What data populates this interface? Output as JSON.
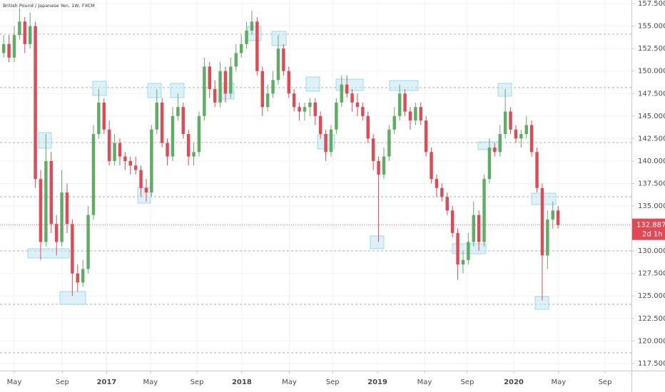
{
  "chart_data": {
    "type": "candlestick",
    "title": "British Pound / Japanese Yen, 1W, FXCM",
    "up_color": "#5fad65",
    "down_color": "#e04a55",
    "grid": true,
    "open": [
      152,
      153,
      151.5,
      154,
      155.5,
      153,
      155,
      138,
      131,
      140,
      133,
      131,
      136.5,
      133,
      127.5,
      126.5,
      128,
      134,
      143,
      146.5,
      143.5,
      140,
      142,
      140.5,
      140,
      139.5,
      139,
      137,
      136.5,
      143.5,
      146.5,
      142,
      140.5,
      145,
      146,
      143,
      140.5,
      141,
      145,
      150.5,
      148,
      146.5,
      150,
      147.5,
      150.5,
      152,
      153,
      154.5,
      155.5,
      150,
      146,
      147.5,
      149,
      152.5,
      150,
      147.5,
      146,
      145.5,
      146,
      146.5,
      145,
      143,
      141,
      143.5,
      146.5,
      148.5,
      147.5,
      146.5,
      146,
      145,
      142.5,
      140,
      138.5,
      140.5,
      143.5,
      145,
      147.5,
      145.5,
      144.5,
      146,
      144.5,
      141,
      138,
      137,
      136,
      134.5,
      132,
      128.5,
      129,
      131,
      134,
      131,
      138,
      141.5,
      141,
      143,
      145.5,
      143.5,
      142.5,
      143,
      144,
      141,
      137,
      129.5,
      133.5,
      134.5
    ],
    "high": [
      154,
      154,
      155,
      157,
      156,
      156.5,
      155.5,
      139,
      143,
      141,
      134,
      139,
      137.5,
      133.5,
      128.5,
      129,
      135,
      144,
      148,
      147,
      144.5,
      143,
      142.5,
      141,
      140.5,
      140.5,
      139.5,
      138,
      144,
      148,
      147,
      142.5,
      146,
      147.5,
      146.5,
      143.5,
      142,
      145.5,
      151.5,
      151,
      149,
      151,
      150.5,
      151.5,
      153,
      154,
      155.5,
      156.7,
      156,
      150.5,
      148.5,
      150,
      154,
      153,
      150.5,
      148,
      146.5,
      146.5,
      147,
      147,
      145.5,
      143.5,
      144,
      147,
      149.5,
      149.5,
      148,
      147.5,
      146.5,
      145.5,
      143,
      140.5,
      141.5,
      144,
      146,
      148.5,
      148,
      146,
      146.5,
      146.5,
      145,
      141.5,
      138.5,
      137.5,
      136.5,
      135,
      132.5,
      130,
      132,
      135.5,
      134.5,
      138.5,
      142.5,
      142,
      144,
      148,
      146,
      144,
      143.5,
      145,
      144.5,
      141.5,
      137.5,
      134.5,
      135.5,
      135
    ],
    "low": [
      151.5,
      151,
      151,
      153.5,
      152,
      152.5,
      137,
      129,
      130.5,
      132,
      129.5,
      130.5,
      132,
      125,
      125.5,
      126,
      127.5,
      133.5,
      142.5,
      143,
      139.5,
      139.5,
      139.5,
      139,
      138.5,
      138.5,
      136,
      135.5,
      136,
      143,
      141.5,
      139.5,
      140,
      144.5,
      142.5,
      139.5,
      139.5,
      140.5,
      144.5,
      147,
      146,
      146,
      146.5,
      147,
      150,
      151.5,
      152.5,
      154,
      149.5,
      145,
      145.5,
      147,
      148.5,
      149.5,
      147,
      145.5,
      144.5,
      144.5,
      145,
      144,
      142.5,
      140,
      140.5,
      143,
      146,
      147,
      145.5,
      145,
      144.5,
      142,
      139,
      131,
      138,
      140,
      143,
      144.5,
      145,
      143.5,
      144,
      144,
      140.5,
      137.5,
      136,
      135.5,
      134,
      131.5,
      126.8,
      127.5,
      128.5,
      130.5,
      130,
      130.5,
      137.5,
      140.5,
      140.5,
      142.5,
      143,
      142,
      141.5,
      142.5,
      140.5,
      136.5,
      124.5,
      128,
      132.5,
      132.5
    ],
    "close": [
      153,
      151.5,
      154,
      155.5,
      153,
      155,
      138,
      131,
      140,
      133,
      131,
      136.5,
      133,
      127.5,
      126.5,
      128,
      134,
      143,
      146.5,
      143.5,
      140,
      142,
      140.5,
      140,
      139.5,
      139,
      137,
      136.5,
      143.5,
      146.5,
      142,
      140.5,
      145,
      146,
      143,
      140.5,
      141,
      145,
      150.5,
      148,
      146.5,
      150,
      147.5,
      150.5,
      152,
      153,
      154.5,
      155.5,
      150,
      146,
      147.5,
      149,
      152.5,
      150,
      147.5,
      146,
      145.5,
      146,
      146.5,
      145,
      143,
      141,
      143.5,
      146.5,
      148.5,
      147.5,
      146.5,
      146,
      145,
      142.5,
      140,
      138.5,
      140.5,
      143.5,
      145,
      147.5,
      145.5,
      144.5,
      146,
      144.5,
      141,
      138,
      137,
      136,
      134.5,
      132,
      128.5,
      129,
      131,
      134,
      131,
      138,
      141.5,
      141,
      143,
      145.5,
      143.5,
      142.5,
      143,
      144,
      141,
      137,
      129.5,
      133.5,
      134.5,
      132.887
    ],
    "xlim": [
      -0.7,
      118.9
    ],
    "xticks": [
      {
        "value": 2.0,
        "label": "May"
      },
      {
        "value": 11.1,
        "label": "Sep"
      },
      {
        "value": 19.5,
        "label": "2017"
      },
      {
        "value": 27.8,
        "label": "May"
      },
      {
        "value": 36.6,
        "label": "Sep"
      },
      {
        "value": 45.1,
        "label": "2018"
      },
      {
        "value": 54.1,
        "label": "May"
      },
      {
        "value": 62.3,
        "label": "Sep"
      },
      {
        "value": 70.8,
        "label": "2019"
      },
      {
        "value": 79.7,
        "label": "May"
      },
      {
        "value": 87.8,
        "label": "Sep"
      },
      {
        "value": 96.6,
        "label": "2020"
      },
      {
        "value": 105.1,
        "label": "May"
      },
      {
        "value": 113.9,
        "label": "Sep"
      }
    ],
    "ylim": [
      116.7,
      157.9
    ],
    "yticks": [
      {
        "value": 117.5,
        "label": "117.500"
      },
      {
        "value": 120,
        "label": "120.000"
      },
      {
        "value": 122.5,
        "label": "122.500"
      },
      {
        "value": 125,
        "label": "125.000"
      },
      {
        "value": 127.5,
        "label": "127.500"
      },
      {
        "value": 130,
        "label": "130.000"
      },
      {
        "value": 132.5,
        "label": "132.500"
      },
      {
        "value": 135,
        "label": "135.000"
      },
      {
        "value": 137.5,
        "label": "137.500"
      },
      {
        "value": 140,
        "label": "140.000"
      },
      {
        "value": 142.5,
        "label": "142.500"
      },
      {
        "value": 145,
        "label": "145.000"
      },
      {
        "value": 147.5,
        "label": "147.500"
      },
      {
        "value": 150,
        "label": "150.000"
      },
      {
        "value": 152.5,
        "label": "152.500"
      },
      {
        "value": 155,
        "label": "155.000"
      },
      {
        "value": 157.5,
        "label": "157.500"
      }
    ],
    "last_price": {
      "value": 132.887,
      "label": "132.887"
    },
    "countdown": "2d 1h"
  }
}
